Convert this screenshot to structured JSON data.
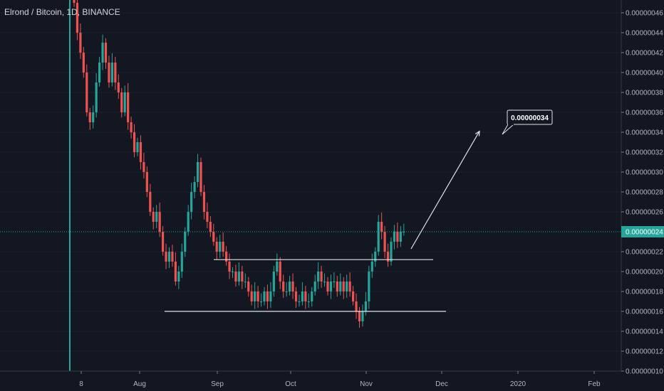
{
  "chart_data": {
    "type": "candlestick",
    "title": "Elrond / Bitcoin, 1D, BINANCE",
    "x_ticks": [
      "8",
      "Aug",
      "Sep",
      "Oct",
      "Nov",
      "Dec",
      "2020",
      "Feb"
    ],
    "y_ticks": [
      "0.00000046",
      "0.00000044",
      "0.00000042",
      "0.00000040",
      "0.00000038",
      "0.00000036",
      "0.00000034",
      "0.00000032",
      "0.00000030",
      "0.00000028",
      "0.00000026",
      "0.00000022",
      "0.00000020",
      "0.00000018",
      "0.00000016",
      "0.00000014",
      "0.00000012",
      "0.00000010"
    ],
    "ylim": [
      1e-07,
      4.7e-07
    ],
    "last_price": "0.00000024",
    "last_price_value": 2.4e-07,
    "target_label": "0.00000034",
    "target_value": 3.41e-07,
    "resistance_level": 2.12e-07,
    "support_level": 1.6e-07,
    "up_color": "#26a69a",
    "down_color": "#ef5350",
    "closes": [
      4.7e-07,
      4.4e-07,
      4.2e-07,
      4e-07,
      3.6e-07,
      3.5e-07,
      3.6e-07,
      3.9e-07,
      4.1e-07,
      4.3e-07,
      4.1e-07,
      3.9e-07,
      4.1e-07,
      3.9e-07,
      3.8e-07,
      3.6e-07,
      3.8e-07,
      3.5e-07,
      3.4e-07,
      3.2e-07,
      3.3e-07,
      3.1e-07,
      3e-07,
      2.8e-07,
      2.6e-07,
      2.5e-07,
      2.6e-07,
      2.4e-07,
      2.2e-07,
      2.1e-07,
      2.2e-07,
      2.1e-07,
      1.9e-07,
      2e-07,
      2.2e-07,
      2.4e-07,
      2.6e-07,
      2.8e-07,
      2.9e-07,
      3.1e-07,
      2.8e-07,
      2.6e-07,
      2.5e-07,
      2.4e-07,
      2.3e-07,
      2.2e-07,
      2.3e-07,
      2.2e-07,
      2.1e-07,
      2e-07,
      2e-07,
      1.9e-07,
      2e-07,
      1.9e-07,
      1.9e-07,
      1.8e-07,
      1.7e-07,
      1.8e-07,
      1.7e-07,
      1.7e-07,
      1.8e-07,
      1.7e-07,
      1.8e-07,
      2e-07,
      2.1e-07,
      1.9e-07,
      1.8e-07,
      1.8e-07,
      1.9e-07,
      1.8e-07,
      1.7e-07,
      1.7e-07,
      1.8e-07,
      1.7e-07,
      1.7e-07,
      1.8e-07,
      1.9e-07,
      2e-07,
      1.9e-07,
      1.9e-07,
      1.8e-07,
      1.9e-07,
      1.9e-07,
      1.8e-07,
      1.9e-07,
      1.8e-07,
      1.9e-07,
      1.8e-07,
      1.7e-07,
      1.6e-07,
      1.5e-07,
      1.6e-07,
      1.7e-07,
      2e-07,
      2.1e-07,
      2.2e-07,
      2.5e-07,
      2.4e-07,
      2.2e-07,
      2.1e-07,
      2.3e-07,
      2.4e-07,
      2.3e-07,
      2.4e-07,
      2.4e-07
    ]
  }
}
